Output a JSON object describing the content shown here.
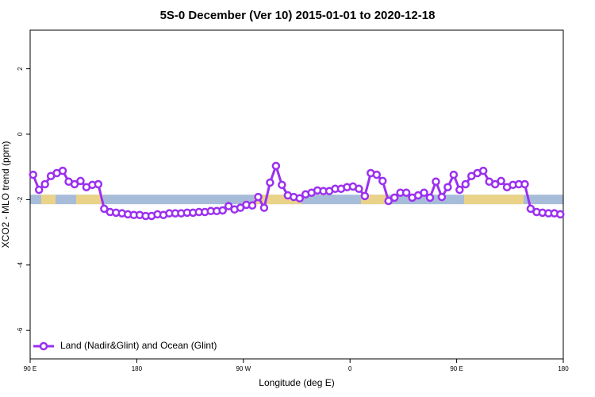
{
  "chart_data": {
    "type": "line",
    "title": "5S-0 December (Ver 10)   2015-01-01 to 2020-12-18",
    "x_label": "Longitude (deg E)",
    "y_label": "XCO2 - MLO trend (ppm)",
    "xlim": [
      90,
      540
    ],
    "ylim": [
      -6.87,
      3.18
    ],
    "xticks": [
      {
        "value": 90,
        "label": "90 E"
      },
      180,
      {
        "value": 270,
        "label": "90 W"
      },
      {
        "value": 360,
        "label": "0"
      },
      {
        "value": 450,
        "label": "90 E"
      },
      {
        "value": 540,
        "label": "180"
      }
    ],
    "yticks": [
      -6,
      -4,
      -2,
      0,
      2
    ],
    "band": [
      -2.14,
      -1.85
    ],
    "band_color": "#a7bcd9",
    "legend": "bottom-left",
    "series": [
      {
        "name": "Land (Nadir&Glint) and Ocean (Glint)",
        "color": "#9b30f0",
        "x": [
          92.5,
          97.5,
          102.5,
          107.5,
          112.5,
          117.5,
          122.5,
          127.5,
          132.5,
          137.5,
          142.5,
          147.5,
          152.5,
          157.5,
          162.5,
          167.5,
          172.5,
          177.5,
          182.5,
          187.5,
          192.5,
          197.5,
          202.5,
          207.5,
          212.5,
          217.5,
          222.5,
          227.5,
          232.5,
          237.5,
          242.5,
          247.5,
          252.5,
          257.5,
          262.5,
          267.5,
          272.5,
          277.5,
          282.5,
          287.5,
          292.5,
          297.5,
          302.5,
          307.5,
          312.5,
          317.5,
          322.5,
          327.5,
          332.5,
          337.5,
          342.5,
          347.5,
          352.5,
          357.5,
          362.5,
          367.5,
          372.5,
          377.5,
          382.5,
          387.5,
          392.5,
          397.5,
          402.5,
          407.5,
          412.5,
          417.5,
          422.5,
          427.5,
          432.5,
          437.5,
          442.5,
          447.5,
          452.5,
          457.5,
          462.5,
          467.5,
          472.5,
          477.5,
          482.5,
          487.5,
          492.5,
          497.5,
          502.5,
          507.5,
          512.5,
          517.5,
          522.5,
          527.5,
          532.5,
          537.5
        ],
        "values": [
          -1.24,
          -1.7,
          -1.53,
          -1.28,
          -1.19,
          -1.12,
          -1.45,
          -1.53,
          -1.43,
          -1.62,
          -1.55,
          -1.53,
          -2.28,
          -2.38,
          -2.4,
          -2.42,
          -2.45,
          -2.47,
          -2.47,
          -2.5,
          -2.5,
          -2.45,
          -2.47,
          -2.42,
          -2.42,
          -2.42,
          -2.4,
          -2.4,
          -2.38,
          -2.38,
          -2.35,
          -2.35,
          -2.33,
          -2.2,
          -2.3,
          -2.25,
          -2.16,
          -2.18,
          -1.92,
          -2.25,
          -1.48,
          -0.97,
          -1.55,
          -1.87,
          -1.92,
          -1.96,
          -1.84,
          -1.79,
          -1.72,
          -1.74,
          -1.74,
          -1.67,
          -1.67,
          -1.62,
          -1.6,
          -1.67,
          -1.89,
          -1.19,
          -1.24,
          -1.43,
          -2.04,
          -1.94,
          -1.79,
          -1.79,
          -1.94,
          -1.87,
          -1.79,
          -1.94,
          -1.45,
          -1.92,
          -1.62,
          -1.24,
          -1.7,
          -1.53,
          -1.28,
          -1.19,
          -1.12,
          -1.45,
          -1.53,
          -1.43,
          -1.62,
          -1.55,
          -1.53,
          -1.53,
          -2.28,
          -2.38,
          -2.4,
          -2.42,
          -2.42,
          -2.45
        ]
      }
    ]
  }
}
